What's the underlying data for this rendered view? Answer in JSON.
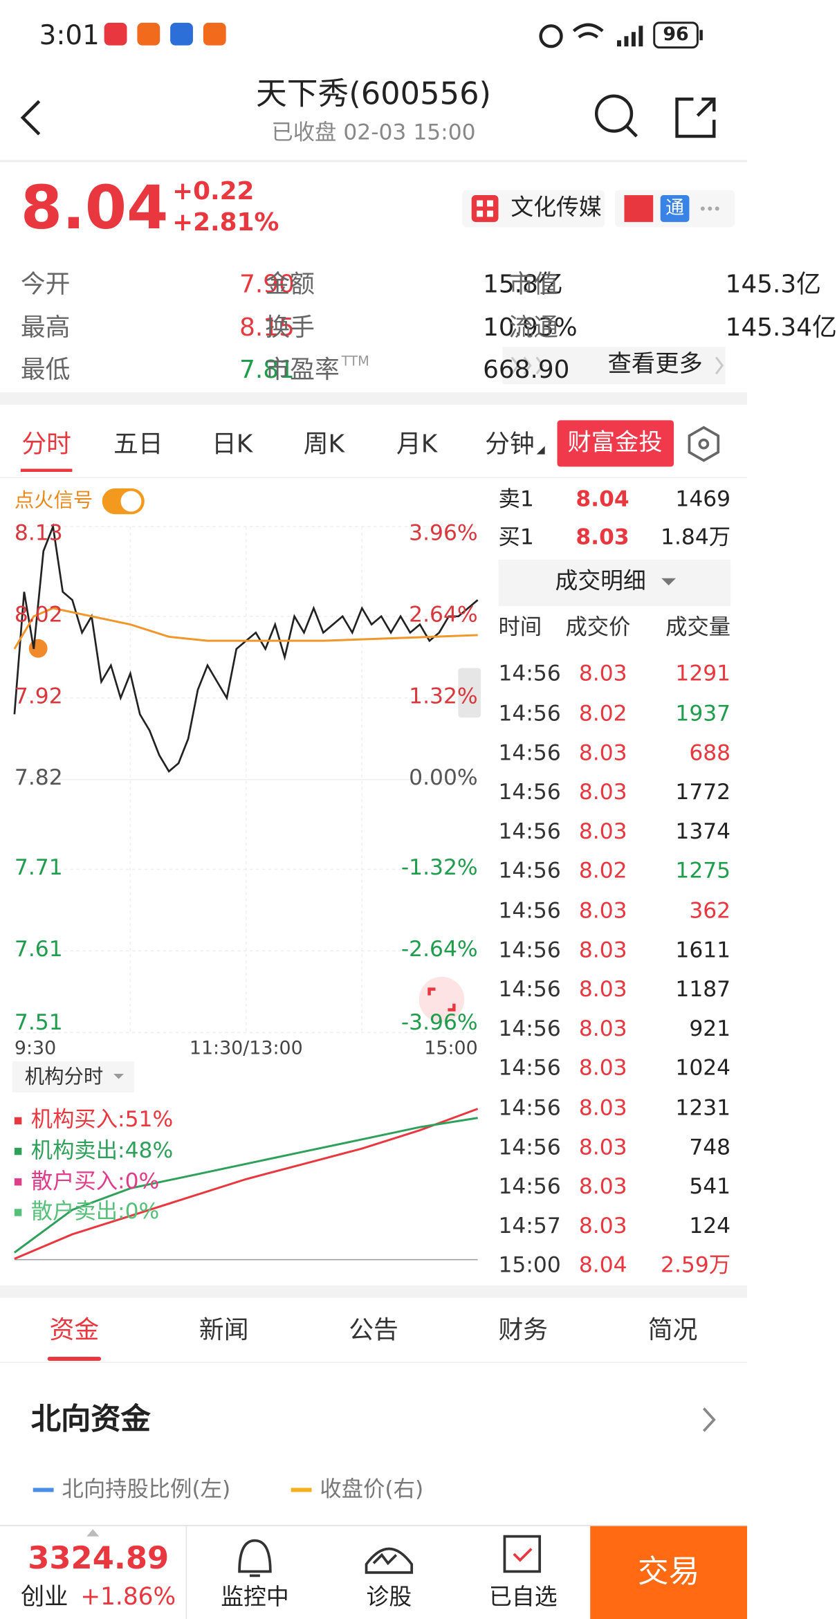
{
  "status_bar": {
    "time": "3:01",
    "battery": "96"
  },
  "header": {
    "title": "天下秀(600556)",
    "subtitle": "已收盘 02-03 15:00"
  },
  "quote": {
    "price": "8.04",
    "change": "+0.22",
    "change_percent": "+2.81%",
    "sector": "文化传媒",
    "badge": "通"
  },
  "stats": [
    {
      "label": "今开",
      "value": "7.90",
      "color": "#e8373e"
    },
    {
      "label": "金额",
      "value": "15.8亿",
      "color": "#222222"
    },
    {
      "label": "市值",
      "value": "145.3亿",
      "color": "#222222"
    },
    {
      "label": "最高",
      "value": "8.15",
      "color": "#e8373e"
    },
    {
      "label": "换手",
      "value": "10.93%",
      "color": "#222222"
    },
    {
      "label": "流通",
      "value": "145.34亿",
      "color": "#222222"
    },
    {
      "label": "最低",
      "value": "7.81",
      "color": "#1f9d4c"
    },
    {
      "label": "市盈率",
      "sup": "TTM",
      "value": "668.90",
      "color": "#222222"
    }
  ],
  "more": "查看更多",
  "tabs": {
    "items": [
      "分时",
      "五日",
      "日K",
      "周K",
      "月K",
      "分钟"
    ],
    "active": 0,
    "promo": "财富金投"
  },
  "signal": "点火信号",
  "intraday": {
    "type": "line",
    "x": [
      0,
      5,
      10,
      15,
      20,
      25,
      30,
      35,
      40,
      45,
      50,
      55,
      60,
      65,
      70,
      75,
      80,
      85,
      90,
      95,
      100,
      105,
      110,
      115,
      120,
      125,
      130,
      135,
      140,
      145,
      150,
      155,
      160,
      165,
      170,
      175,
      180,
      185,
      190,
      195,
      200,
      205,
      210,
      215,
      220,
      225,
      230,
      235,
      240
    ],
    "xlim": [
      0,
      240
    ],
    "ylim": [
      7.51,
      8.13
    ],
    "yticks": [
      8.13,
      8.02,
      7.92,
      7.82,
      7.71,
      7.61,
      7.51
    ],
    "percent_ticks": [
      {
        "value": 3.96,
        "label": "3.96%"
      },
      {
        "value": 2.64,
        "label": "2.64%"
      },
      {
        "value": 1.32,
        "label": "1.32%"
      },
      {
        "value": 0,
        "label": "0.00%"
      },
      {
        "value": -1.32,
        "label": "-1.32%"
      },
      {
        "value": -2.64,
        "label": "-2.64%"
      },
      {
        "value": -3.96,
        "label": "-3.96%"
      }
    ],
    "xlabels": [
      "9:30",
      "11:30/13:00",
      "15:00"
    ],
    "grid": true,
    "series": [
      {
        "color": "#222222",
        "values": [
          7.9,
          8.05,
          7.98,
          8.1,
          8.13,
          8.05,
          8.04,
          8.0,
          8.02,
          7.94,
          7.96,
          7.92,
          7.95,
          7.9,
          7.88,
          7.85,
          7.83,
          7.84,
          7.87,
          7.93,
          7.96,
          7.94,
          7.92,
          7.98,
          7.99,
          8.0,
          7.98,
          8.01,
          7.97,
          8.02,
          8.0,
          8.03,
          8.0,
          8.01,
          8.02,
          8.0,
          8.03,
          8.01,
          8.02,
          8.0,
          8.02,
          8.0,
          8.01,
          7.99,
          8.0,
          8.02,
          8.02,
          8.03,
          8.04
        ]
      },
      {
        "color": "#f0962a",
        "x": [
          0,
          10,
          20,
          40,
          60,
          80,
          100,
          160,
          240
        ],
        "values": [
          7.98,
          8.02,
          8.03,
          8.02,
          8.01,
          7.995,
          7.99,
          7.99,
          7.997
        ]
      }
    ]
  },
  "flow": {
    "menu": "机构分时",
    "legend": [
      {
        "label": "机构买入:51%",
        "color": "#e8373e"
      },
      {
        "label": "机构卖出:48%",
        "color": "#2ea05a"
      },
      {
        "label": "散户买入:0%",
        "color": "#e03c8a"
      },
      {
        "label": "散户卖出:0%",
        "color": "#56c07a"
      }
    ],
    "x": [
      0,
      30,
      60,
      90,
      120,
      150,
      180,
      210,
      240
    ],
    "xlim": [
      0,
      240
    ],
    "ylim": [
      0,
      55
    ],
    "series": [
      {
        "color": "#e8373e",
        "values": [
          2,
          10,
          16,
          22,
          28,
          33,
          38,
          44,
          51
        ]
      },
      {
        "color": "#2ea05a",
        "values": [
          4,
          18,
          25,
          29,
          33,
          37,
          41,
          45,
          48
        ]
      }
    ]
  },
  "book": {
    "ask": {
      "label": "卖1",
      "price": "8.04",
      "volume": "1469"
    },
    "bid": {
      "label": "买1",
      "price": "8.03",
      "volume": "1.84万"
    },
    "detail": "成交明细",
    "headers": [
      "时间",
      "成交价",
      "成交量"
    ],
    "trades": [
      {
        "time": "14:56",
        "price": "8.03",
        "volume": "1291",
        "color": "#e8373e"
      },
      {
        "time": "14:56",
        "price": "8.02",
        "volume": "1937",
        "color": "#1f9d4c"
      },
      {
        "time": "14:56",
        "price": "8.03",
        "volume": "688",
        "color": "#e8373e"
      },
      {
        "time": "14:56",
        "price": "8.03",
        "volume": "1772",
        "color": "#222222"
      },
      {
        "time": "14:56",
        "price": "8.03",
        "volume": "1374",
        "color": "#222222"
      },
      {
        "time": "14:56",
        "price": "8.02",
        "volume": "1275",
        "color": "#1f9d4c"
      },
      {
        "time": "14:56",
        "price": "8.03",
        "volume": "362",
        "color": "#e8373e"
      },
      {
        "time": "14:56",
        "price": "8.03",
        "volume": "1611",
        "color": "#222222"
      },
      {
        "time": "14:56",
        "price": "8.03",
        "volume": "1187",
        "color": "#222222"
      },
      {
        "time": "14:56",
        "price": "8.03",
        "volume": "921",
        "color": "#222222"
      },
      {
        "time": "14:56",
        "price": "8.03",
        "volume": "1024",
        "color": "#222222"
      },
      {
        "time": "14:56",
        "price": "8.03",
        "volume": "1231",
        "color": "#222222"
      },
      {
        "time": "14:56",
        "price": "8.03",
        "volume": "748",
        "color": "#222222"
      },
      {
        "time": "14:56",
        "price": "8.03",
        "volume": "541",
        "color": "#222222"
      },
      {
        "time": "14:57",
        "price": "8.03",
        "volume": "124",
        "color": "#222222"
      },
      {
        "time": "15:00",
        "price": "8.04",
        "volume": "2.59万",
        "color": "#e8373e"
      }
    ]
  },
  "section_tabs": {
    "items": [
      "资金",
      "新闻",
      "公告",
      "财务",
      "简况"
    ],
    "active": 0
  },
  "north": {
    "title": "北向资金",
    "legend": [
      {
        "label": "北向持股比例(左)",
        "color": "#4a8de6"
      },
      {
        "label": "收盘价(右)",
        "color": "#f2b01e"
      }
    ]
  },
  "bottom_nav": {
    "index_value": "3324.89",
    "index_name": "创业",
    "index_change": "+1.86%",
    "items": [
      "监控中",
      "诊股",
      "已自选"
    ],
    "trade": "交易"
  }
}
